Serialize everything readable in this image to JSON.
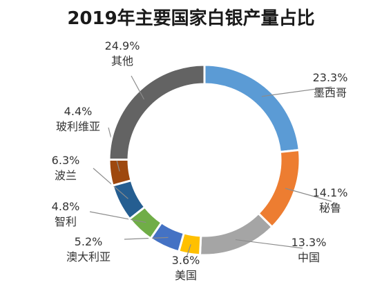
{
  "chart_data": {
    "type": "pie",
    "donut": true,
    "title": "2019年主要国家白银产量占比",
    "slices": [
      {
        "name": "墨西哥",
        "value": 23.3,
        "label": "23.3%",
        "color": "#5B9BD5"
      },
      {
        "name": "秘鲁",
        "value": 14.1,
        "label": "14.1%",
        "color": "#ED7D31"
      },
      {
        "name": "中国",
        "value": 13.3,
        "label": "13.3%",
        "color": "#A5A5A5"
      },
      {
        "name": "美国",
        "value": 3.6,
        "label": "3.6%",
        "color": "#FFC000"
      },
      {
        "name": "澳大利亚",
        "value": 5.2,
        "label": "5.2%",
        "color": "#4472C4"
      },
      {
        "name": "智利",
        "value": 4.8,
        "label": "4.8%",
        "color": "#70AD47"
      },
      {
        "name": "波兰",
        "value": 6.3,
        "label": "6.3%",
        "color": "#255E91"
      },
      {
        "name": "玻利维亚",
        "value": 4.4,
        "label": "4.4%",
        "color": "#9E480E"
      },
      {
        "name": "其他",
        "value": 24.9,
        "label": "24.9%",
        "color": "#636363"
      }
    ]
  }
}
